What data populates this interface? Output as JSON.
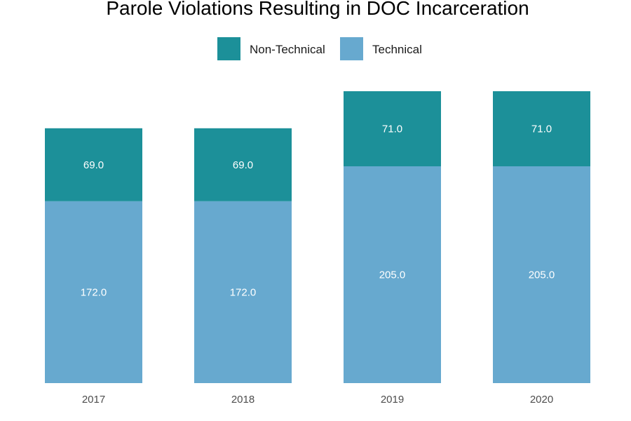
{
  "chart_data": {
    "type": "bar",
    "stacked": true,
    "title": "Parole Violations Resulting in DOC Incarceration",
    "xlabel": "",
    "ylabel": "",
    "categories": [
      "2017",
      "2018",
      "2019",
      "2020"
    ],
    "series": [
      {
        "name": "Technical",
        "color": "#67a9cf",
        "values": [
          172.0,
          172.0,
          205.0,
          205.0
        ]
      },
      {
        "name": "Non-Technical",
        "color": "#1c9099",
        "values": [
          69.0,
          69.0,
          71.0,
          71.0
        ]
      }
    ],
    "legend_order": [
      "Non-Technical",
      "Technical"
    ],
    "legend_position": "top",
    "data_labels": true,
    "grid": false,
    "ylim": [
      0,
      276
    ]
  }
}
